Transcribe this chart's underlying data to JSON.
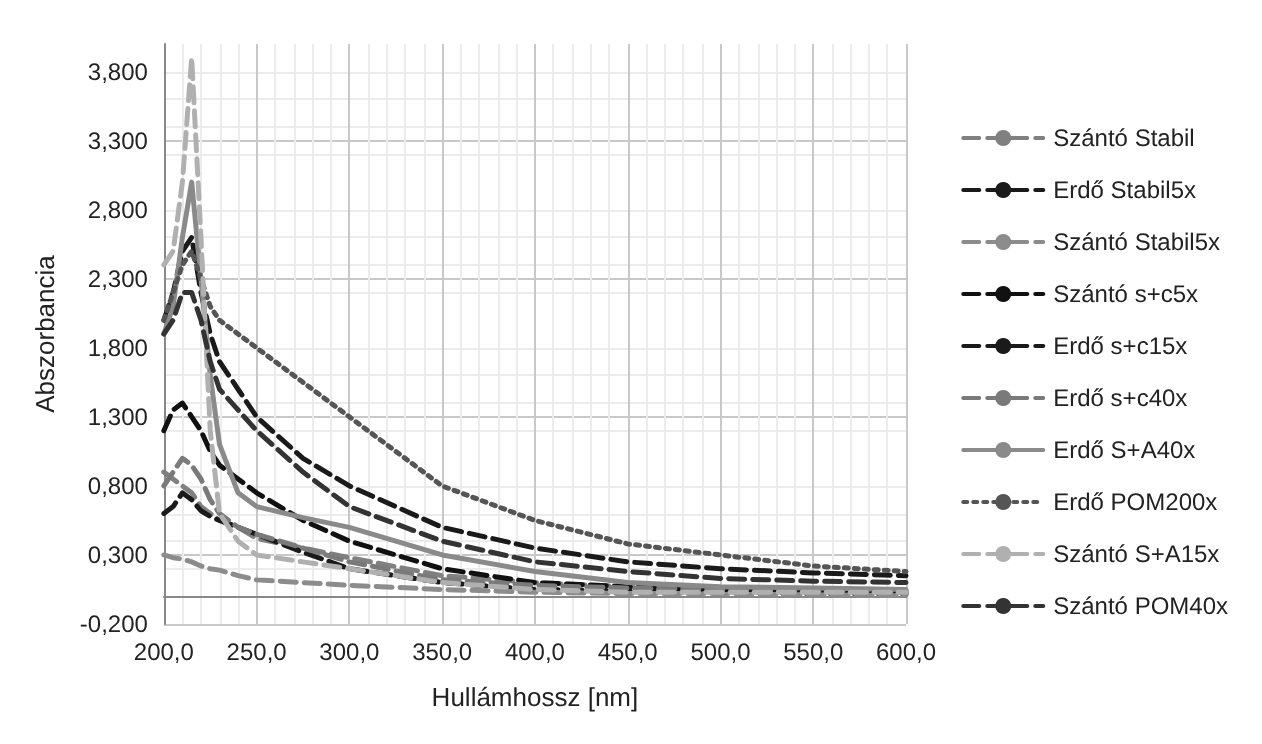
{
  "chart_data": {
    "type": "line",
    "xlabel": "Hullámhossz [nm]",
    "ylabel": "Abszorbancia",
    "x": [
      200,
      205,
      210,
      215,
      220,
      225,
      230,
      240,
      250,
      275,
      300,
      350,
      400,
      450,
      500,
      550,
      600
    ],
    "xlim": [
      200,
      600
    ],
    "xticks": [
      {
        "value": 200,
        "label": "200,0"
      },
      {
        "value": 250,
        "label": "250,0"
      },
      {
        "value": 300,
        "label": "300,0"
      },
      {
        "value": 350,
        "label": "350,0"
      },
      {
        "value": 400,
        "label": "400,0"
      },
      {
        "value": 450,
        "label": "450,0"
      },
      {
        "value": 500,
        "label": "500,0"
      },
      {
        "value": 550,
        "label": "550,0"
      },
      {
        "value": 600,
        "label": "600,0"
      }
    ],
    "ylim": [
      -0.2,
      4.0
    ],
    "yticks": [
      {
        "value": -0.2,
        "label": "-0,200"
      },
      {
        "value": 0.3,
        "label": "0,300"
      },
      {
        "value": 0.8,
        "label": "0,800"
      },
      {
        "value": 1.3,
        "label": "1,300"
      },
      {
        "value": 1.8,
        "label": "1,800"
      },
      {
        "value": 2.3,
        "label": "2,300"
      },
      {
        "value": 2.8,
        "label": "2,800"
      },
      {
        "value": 3.3,
        "label": "3,300"
      },
      {
        "value": 3.8,
        "label": "3,800"
      }
    ],
    "grid": true,
    "legend": "right",
    "marker": "none",
    "series": [
      {
        "name": "Szántó Stabil",
        "color": "#808080",
        "line_style": "dashed",
        "values": [
          0.9,
          0.85,
          0.8,
          0.75,
          0.65,
          0.6,
          0.55,
          0.5,
          0.42,
          0.35,
          0.28,
          0.15,
          0.1,
          0.07,
          0.05,
          0.04,
          0.03
        ]
      },
      {
        "name": "Erdő Stabil5x",
        "color": "#1a1a1a",
        "line_style": "dashed",
        "values": [
          0.6,
          0.65,
          0.75,
          0.7,
          0.62,
          0.58,
          0.55,
          0.5,
          0.45,
          0.32,
          0.2,
          0.1,
          0.05,
          0.04,
          0.03,
          0.02,
          0.02
        ]
      },
      {
        "name": "Szántó Stabil5x",
        "color": "#8c8c8c",
        "line_style": "dashed",
        "values": [
          0.3,
          0.28,
          0.27,
          0.25,
          0.22,
          0.2,
          0.19,
          0.15,
          0.12,
          0.1,
          0.08,
          0.05,
          0.03,
          0.02,
          0.02,
          0.01,
          0.01
        ]
      },
      {
        "name": "Szántó s+c5x",
        "color": "#111111",
        "line_style": "dashed",
        "values": [
          1.2,
          1.35,
          1.4,
          1.3,
          1.2,
          1.05,
          0.95,
          0.85,
          0.75,
          0.55,
          0.4,
          0.2,
          0.1,
          0.07,
          0.05,
          0.05,
          0.04
        ]
      },
      {
        "name": "Erdő s+c15x",
        "color": "#1a1a1a",
        "line_style": "dashed",
        "values": [
          2.0,
          2.2,
          2.5,
          2.6,
          2.2,
          1.9,
          1.7,
          1.5,
          1.3,
          1.0,
          0.8,
          0.5,
          0.35,
          0.25,
          0.2,
          0.17,
          0.15
        ]
      },
      {
        "name": "Erdő s+c40x",
        "color": "#7a7a7a",
        "line_style": "dashed",
        "values": [
          0.8,
          0.9,
          1.0,
          0.95,
          0.85,
          0.7,
          0.6,
          0.5,
          0.45,
          0.35,
          0.25,
          0.12,
          0.08,
          0.06,
          0.05,
          0.04,
          0.03
        ]
      },
      {
        "name": "Erdő S+A40x",
        "color": "#8a8a8a",
        "line_style": "solid",
        "values": [
          1.9,
          2.1,
          2.6,
          3.0,
          2.3,
          1.6,
          1.1,
          0.75,
          0.65,
          0.57,
          0.5,
          0.3,
          0.18,
          0.1,
          0.07,
          0.06,
          0.05
        ]
      },
      {
        "name": "Erdő POM200x",
        "color": "#555555",
        "line_style": "dotted",
        "values": [
          2.0,
          2.2,
          2.4,
          2.5,
          2.3,
          2.1,
          2.0,
          1.9,
          1.8,
          1.55,
          1.3,
          0.8,
          0.55,
          0.38,
          0.3,
          0.22,
          0.18
        ]
      },
      {
        "name": "Szántó S+A15x",
        "color": "#b0b0b0",
        "line_style": "dashed",
        "values": [
          2.4,
          2.5,
          3.0,
          3.9,
          2.6,
          1.2,
          0.6,
          0.4,
          0.3,
          0.25,
          0.2,
          0.1,
          0.05,
          0.03,
          0.03,
          0.03,
          0.03
        ]
      },
      {
        "name": "Szántó POM40x",
        "color": "#333333",
        "line_style": "dashed",
        "values": [
          1.9,
          2.0,
          2.2,
          2.2,
          2.0,
          1.7,
          1.5,
          1.35,
          1.2,
          0.9,
          0.65,
          0.4,
          0.25,
          0.18,
          0.13,
          0.11,
          0.1
        ]
      }
    ]
  }
}
